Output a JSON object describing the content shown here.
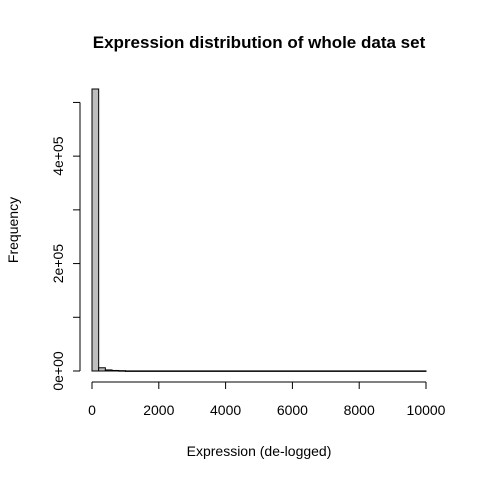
{
  "chart_data": {
    "type": "bar",
    "title": "Expression distribution of whole data set",
    "xlabel": "Expression (de-logged)",
    "ylabel": "Frequency",
    "bin_width": 200,
    "xlim": [
      0,
      10000
    ],
    "ylim": [
      0,
      525000
    ],
    "x_ticks": [
      0,
      2000,
      4000,
      6000,
      8000,
      10000
    ],
    "x_tick_labels": [
      "0",
      "2000",
      "4000",
      "6000",
      "8000",
      "10000"
    ],
    "y_ticks": [
      0,
      100000,
      200000,
      300000,
      400000,
      500000
    ],
    "y_tick_labels": [
      "0e+00",
      "",
      "2e+05",
      "",
      "4e+05",
      ""
    ],
    "bins": [
      {
        "start": 0,
        "end": 200,
        "count": 525000
      },
      {
        "start": 200,
        "end": 400,
        "count": 6000
      },
      {
        "start": 400,
        "end": 600,
        "count": 2000
      },
      {
        "start": 600,
        "end": 800,
        "count": 1000
      },
      {
        "start": 800,
        "end": 1000,
        "count": 600
      },
      {
        "start": 1000,
        "end": 10000,
        "count": 200
      }
    ],
    "grid": false,
    "legend": "none",
    "bar_fill": "#bebebe"
  }
}
